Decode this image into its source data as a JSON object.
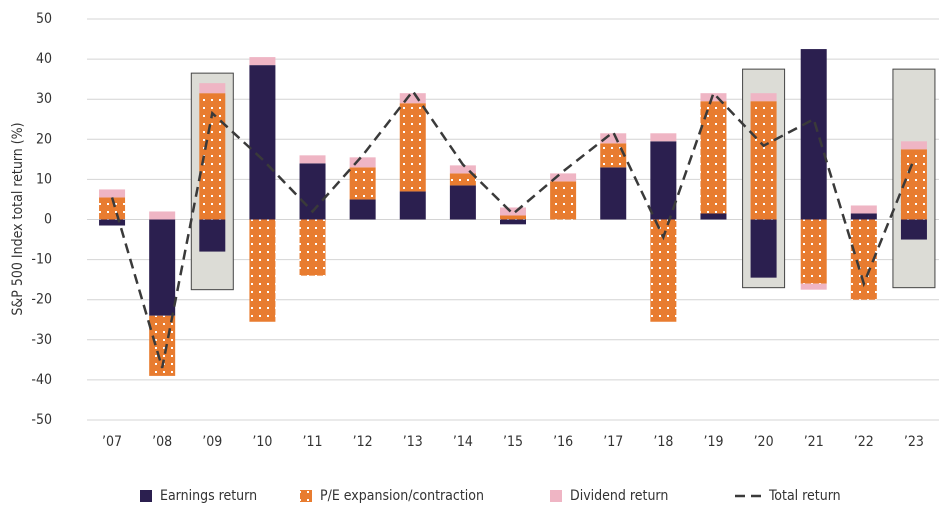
{
  "chart_data": {
    "type": "bar",
    "stacked": true,
    "y_label": "S&P 500 Index total return (%)",
    "categories": [
      "’07",
      "’08",
      "’09",
      "’10",
      "’11",
      "’12",
      "’13",
      "’14",
      "’15",
      "’16",
      "’17",
      "’18",
      "’19",
      "’20",
      "’21",
      "’22",
      "’23"
    ],
    "series": [
      {
        "name": "Earnings return",
        "type": "bar",
        "color": "#2b1f4f",
        "values": [
          -1.5,
          -24,
          -8,
          38.5,
          14,
          5,
          7,
          8.5,
          -1.2,
          0,
          13,
          19.5,
          1.5,
          -14.5,
          42.5,
          1.5,
          -5
        ]
      },
      {
        "name": "P/E expansion/contraction",
        "type": "bar",
        "color": "#e87c30",
        "dotted": true,
        "values": [
          5.5,
          -15,
          31.5,
          -25.5,
          -14,
          8,
          22,
          3,
          1,
          9.5,
          6,
          -25.5,
          28,
          29.5,
          -16,
          -20,
          17.5
        ]
      },
      {
        "name": "Dividend return",
        "type": "bar",
        "color": "#efb5c4",
        "values": [
          2,
          2,
          2.5,
          2,
          2,
          2.5,
          2.5,
          2,
          2,
          2,
          2.5,
          2,
          2,
          2,
          -1.5,
          2,
          2
        ]
      },
      {
        "name": "Total return",
        "type": "line",
        "color": "#3a3a3a",
        "values": [
          5.5,
          -37,
          26.5,
          15,
          2,
          16,
          32,
          13.7,
          1.4,
          12,
          21.8,
          -4.4,
          31.5,
          18.4,
          25,
          -16,
          15
        ]
      }
    ],
    "highlight_boxes": [
      {
        "category": "’09",
        "range": [
          -17.5,
          36.5
        ]
      },
      {
        "category": "’20",
        "range": [
          -17,
          37.5
        ]
      },
      {
        "category": "’23",
        "range": [
          -17,
          37.5
        ]
      }
    ],
    "ylim": [
      -50,
      50
    ],
    "yticks": [
      -50,
      -40,
      -30,
      -20,
      -10,
      0,
      10,
      20,
      30,
      40,
      50
    ],
    "grid": true
  }
}
